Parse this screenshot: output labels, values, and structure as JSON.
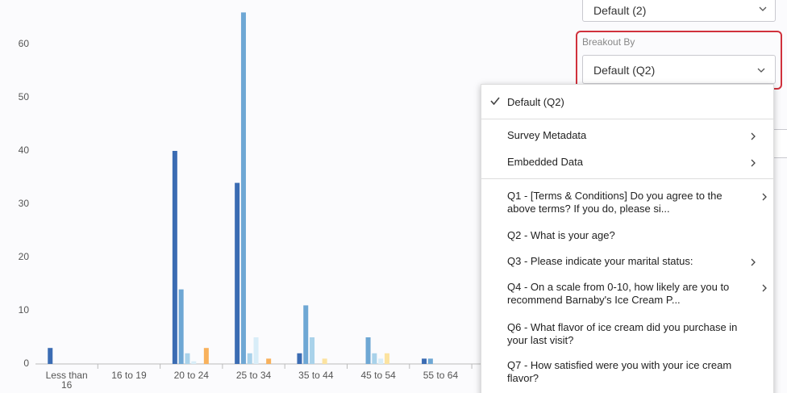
{
  "chart_data": {
    "type": "bar",
    "categories": [
      "Less than 16",
      "16 to 19",
      "20 to 24",
      "25 to 34",
      "35 to 44",
      "45 to 54",
      "55 to 64"
    ],
    "series": [
      {
        "color": "#3b6cb3",
        "values": [
          3,
          0,
          40,
          34,
          2,
          0,
          1
        ]
      },
      {
        "color": "#6ea7d4",
        "values": [
          0,
          0,
          14,
          66,
          11,
          5,
          1
        ]
      },
      {
        "color": "#a9d2ea",
        "values": [
          0,
          0,
          2,
          2,
          5,
          2,
          0
        ]
      },
      {
        "color": "#d8edf8",
        "values": [
          0,
          0,
          0.5,
          5,
          0,
          1,
          0
        ]
      },
      {
        "color": "#fce3a0",
        "values": [
          0,
          0,
          0,
          0,
          1,
          2,
          0
        ]
      },
      {
        "color": "#f8b15c",
        "values": [
          0,
          0,
          3,
          1,
          0,
          0,
          0
        ]
      }
    ],
    "ylim": [
      0,
      68
    ],
    "yticks": [
      0,
      10,
      20,
      30,
      40,
      50,
      60
    ],
    "grid": false
  },
  "controls": {
    "top_select": "Default (2)",
    "breakout_label": "Breakout By",
    "breakout_select": "Default (Q2)"
  },
  "menu": {
    "items": [
      "Default (Q2)",
      "Survey Metadata",
      "Embedded Data",
      "Q1 - [Terms & Conditions] Do you agree to the above terms? If you do, please si...",
      "Q2 - What is your age?",
      "Q3 - Please indicate your marital status:",
      "Q4 - On a scale from 0-10, how likely are you to recommend Barnaby's Ice Cream P...",
      "Q6 - What flavor of ice cream did you purchase in your last visit?",
      "Q7 - How satisfied were you with your ice cream flavor?"
    ]
  }
}
